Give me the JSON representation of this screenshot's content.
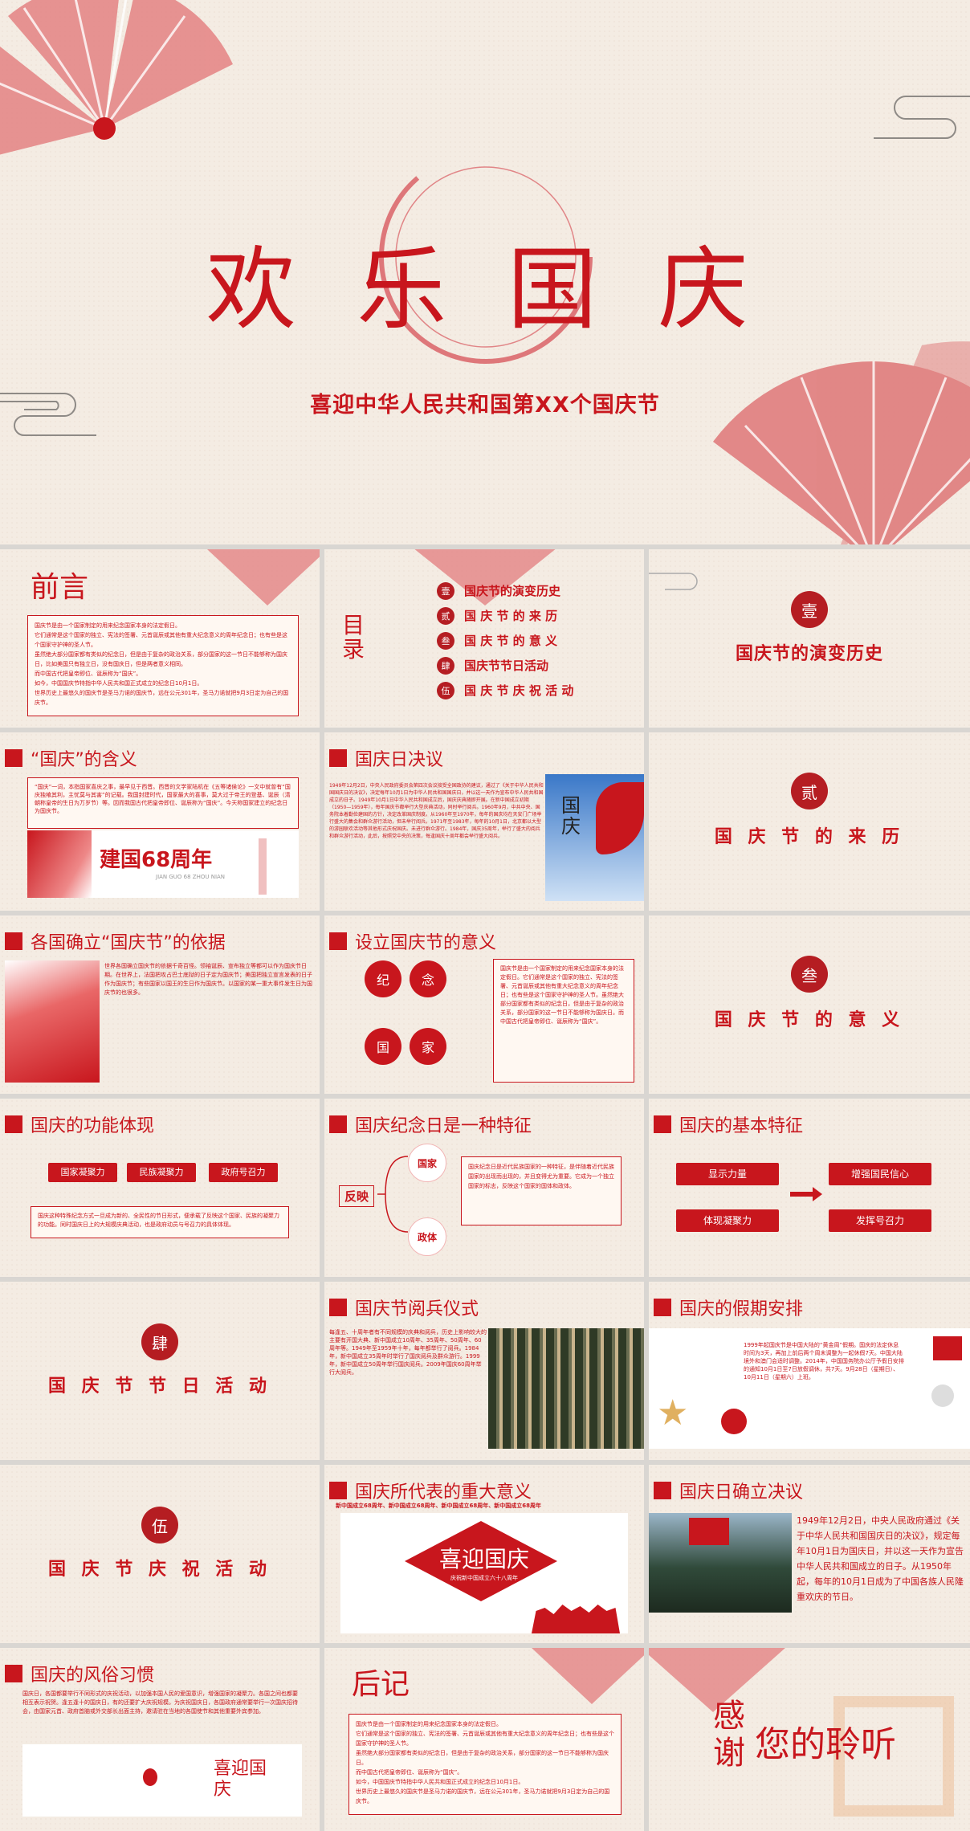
{
  "cover": {
    "title": "欢 乐 国 庆",
    "subtitle": "喜迎中华人民共和国第XX个国庆节"
  },
  "s_foreword": {
    "title": "前言",
    "lines": [
      "国庆节是由一个国家制定的用来纪念国家本身的法定假日。",
      "它们通常是这个国家的独立、宪法的签署、元首诞辰或其他有重大纪念意义的周年纪念日；也有些是这个国家守护神的圣人节。",
      "虽然绝大部分国家都有类似的纪念日，但是由于复杂的政治关系，部分国家的这一节日不能够称为国庆日，比如美国只有独立日，没有国庆日，但是两者意义相同。",
      "而中国古代把皇帝即位、诞辰称为“国庆”。",
      "如今，中国国庆节特指中华人民共和国正式成立的纪念日10月1日。",
      "世界历史上最悠久的国庆节是圣马力诺的国庆节，远在公元301年，圣马力诺就把9月3日定为自己的国庆节。"
    ]
  },
  "s_toc": {
    "title": "目录",
    "items": [
      {
        "seal": "壹",
        "label": "国庆节的演变历史"
      },
      {
        "seal": "贰",
        "label": "国 庆 节 的 来 历"
      },
      {
        "seal": "叁",
        "label": "国 庆 节 的 意 义"
      },
      {
        "seal": "肆",
        "label": "国庆节节日活动"
      },
      {
        "seal": "伍",
        "label": "国 庆 节 庆 祝 活 动"
      }
    ]
  },
  "s_sec1": {
    "seal": "壹",
    "title": "国庆节的演变历史"
  },
  "s_meaning": {
    "title": "“国庆”的含义",
    "text": "“国庆”一词，本指国家喜庆之事，最早见于西晋。西晋的文学家陆机在《五等诸侯论》一文中就曾有“国庆独飨其利，主忧莫与其害”的记载。我国封建时代，国家最大的喜事，莫大过于帝王的登基、诞辰（清朝称皇帝的生日为万岁节）等。因而我国古代把皇帝即位、诞辰称为“国庆”。今天称国家建立的纪念日为国庆节。",
    "banner": "建国68周年",
    "banner_sub": "JIAN GUO 68 ZHOU NIAN"
  },
  "s_resolution": {
    "title": "国庆日决议",
    "text": "1949年12月2日，中央人民政府委员会第四次会议接受全国政协的建议，通过了《关于中华人民共和国国庆日的决议》，决定每年10月1日为中华人民共和国国庆日，并以这一天作为宣布中华人民共和国成立的日子。1949年10月1日中华人民共和国成立后，国庆庆典随即开展。在新中国成立初期（1950—1959年），每年国庆节都举行大型庆典活动，同时举行阅兵。1960年9月，中共中央、国务院本着勤俭建国的方针，决定改革国庆制度。从1960年至1970年，每年的国庆均在天安门广场举行盛大的集会和群众游行活动，但未举行阅兵。1971年至1983年，每年的10月1日，北京都以大型的游园联欢活动等其他形式庆祝国庆。未进行群众游行。1984年，国庆35周年，举行了盛大的阅兵和群众游行活动，此后，按照党中央的决策，每逢国庆十周年都会举行盛大阅兵。",
    "image_title": "国庆"
  },
  "s_sec2": {
    "seal": "贰",
    "title": "国 庆 节 的 来 历"
  },
  "s_basis": {
    "title": "各国确立“国庆节”的依据",
    "text": "世界各国确立国庆节的依据千奇百怪。领袖诞辰、宣布独立等都可以作为国庆节日期。在世界上，法国把攻占巴士底狱的日子定为国庆节；美国把独立宣言发表的日子作为国庆节；有些国家以国王的生日作为国庆节。以国家的某一重大事件发生日为国庆节的也很多。"
  },
  "s_significance": {
    "title": "设立国庆节的意义",
    "chars": [
      "纪",
      "念",
      "国",
      "家"
    ],
    "text": "国庆节是由一个国家制定的用来纪念国家本身的法定假日。它们通常是这个国家的独立、宪法的签署、元首诞辰或其他有重大纪念意义的周年纪念日；也有些是这个国家守护神的圣人节。虽然绝大部分国家都有类似的纪念日，但是由于复杂的政治关系，部分国家的这一节日不能够称为国庆日。而中国古代把皇帝即位、诞辰称为“国庆”。"
  },
  "s_sec3": {
    "seal": "叁",
    "title": "国 庆 节 的 意 义"
  },
  "s_function": {
    "title": "国庆的功能体现",
    "pills": [
      "国家凝聚力",
      "民族凝聚力",
      "政府号召力"
    ],
    "text": "国庆这种特殊纪念方式一旦成为新的、全民性的节日形式，便承载了反映这个国家、民族的凝聚力的功能。同时国庆日上的大规模庆典活动，也是政府动员与号召力的具体体现。"
  },
  "s_feature": {
    "title": "国庆纪念日是一种特征",
    "reflect": "反映",
    "nodes": [
      "国家",
      "政体"
    ],
    "text": "国庆纪念日是近代民族国家的一种特征，是伴随着近代民族国家的出现而出现的，并且变得尤为重要。它成为一个独立国家的标志，反映这个国家的国体和政体。"
  },
  "s_basic": {
    "title": "国庆的基本特征",
    "left": [
      "显示力量",
      "体现凝聚力"
    ],
    "right": [
      "增强国民信心",
      "发挥号召力"
    ]
  },
  "s_sec4": {
    "seal": "肆",
    "title": "国 庆 节 节 日 活 动"
  },
  "s_parade": {
    "title": "国庆节阅兵仪式",
    "text": "每逢五、十周年者有不同规模的庆典和阅兵，历史上影响较大的主要有开国大典、新中国成立10周年、35周年、50周年、60周年等。1949年至1959年十年，每年都举行了阅兵。1984年，新中国成立35周年时举行了国庆阅兵及群众游行。1999年，新中国成立50周年举行国庆阅兵。2009年国庆60周年举行大阅兵。"
  },
  "s_holiday": {
    "title": "国庆的假期安排",
    "text": "1999年起国庆节是中国大陆的“黄金周”假期。国庆的法定休息时间为3天，再加上前后两个周末调整为一起休假7天。中国大陆境外和澳门会适时调整。2014年，中国国务院办公厅予假日安排的通知10月1日至7日放假调休，共7天。9月28日（星期日）、10月11日（星期六）上班。"
  },
  "s_sec5": {
    "seal": "伍",
    "title": "国 庆 节 庆 祝 活 动"
  },
  "s_represent": {
    "title": "国庆所代表的重大意义",
    "ribbon": "新中国成立68周年、新中国成立68周年、新中国成立68周年、新中国成立68周年",
    "banner": "喜迎国庆",
    "banner_sub": "庆祝新中国成立六十八周年"
  },
  "s_decision": {
    "title": "国庆日确立决议",
    "text": "1949年12月2日，中央人民政府通过《关于中华人民共和国国庆日的决议》，规定每年10月1日为国庆日，并以这一天作为宣告中华人民共和国成立的日子。从1950年起，每年的10月1日成为了中国各族人民隆重欢庆的节日。"
  },
  "s_customs": {
    "title": "国庆的风俗习惯",
    "text": "国庆日，各国都要举行不同形式的庆祝活动，以加强本国人民的爱国意识，增强国家的凝聚力。各国之间也都要相互表示祝贺。逢五逢十的国庆日，有的还要扩大庆祝规模。为庆祝国庆日，各国政府通常要举行一次国庆招待会，由国家元首、政府首脑或外交部长出面主持，邀请驻在当地的各国使节和其他重要外宾参加。",
    "art": "喜迎国庆"
  },
  "s_afterword": {
    "title": "后记",
    "lines": [
      "国庆节是由一个国家制定的用来纪念国家本身的法定假日。",
      "它们通常是这个国家的独立、宪法的签署、元首诞辰或其他有重大纪念意义的周年纪念日；也有些是这个国家守护神的圣人节。",
      "虽然绝大部分国家都有类似的纪念日，但是由于复杂的政治关系，部分国家的这一节日不能够称为国庆日。",
      "而中国古代把皇帝即位、诞辰称为“国庆”。",
      "如今，中国国庆节特指中华人民共和国正式成立的纪念日10月1日。",
      "世界历史上最悠久的国庆节是圣马力诺的国庆节，远在公元301年，圣马力诺就把9月3日定为自己的国庆节。"
    ]
  },
  "s_thanks": {
    "left": "感谢",
    "right": "您的聆听"
  },
  "colors": {
    "accent": "#c8161d",
    "paper": "#f4ece3",
    "fan": "#e07d7d"
  }
}
